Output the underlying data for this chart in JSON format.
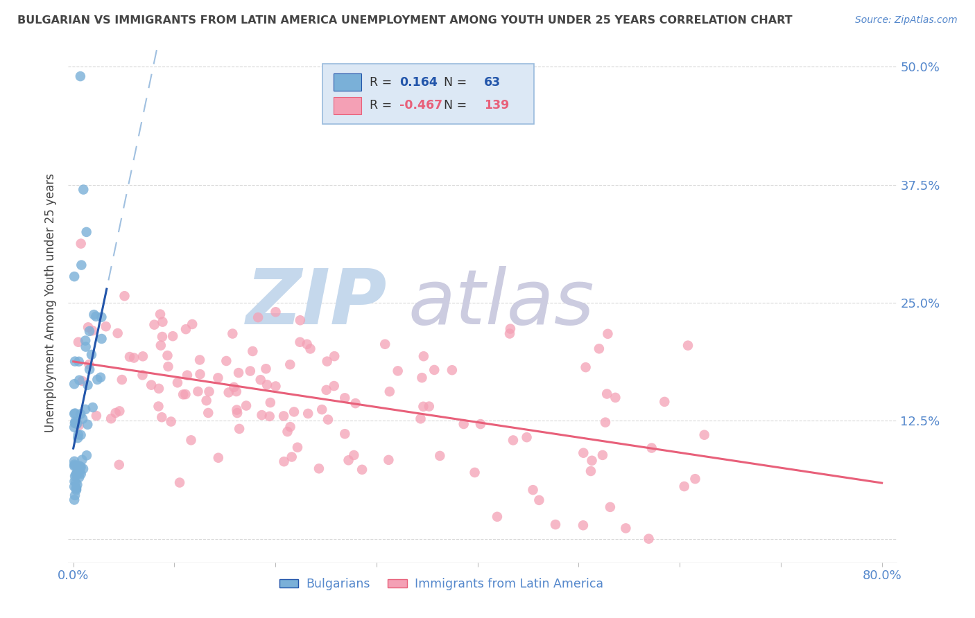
{
  "title": "BULGARIAN VS IMMIGRANTS FROM LATIN AMERICA UNEMPLOYMENT AMONG YOUTH UNDER 25 YEARS CORRELATION CHART",
  "source": "Source: ZipAtlas.com",
  "ylabel": "Unemployment Among Youth under 25 years",
  "xlim": [
    -0.005,
    0.815
  ],
  "ylim": [
    -0.025,
    0.525
  ],
  "ytick_vals": [
    0.0,
    0.125,
    0.25,
    0.375,
    0.5
  ],
  "ytick_labels_right": [
    "",
    "12.5%",
    "25.0%",
    "37.5%",
    "50.0%"
  ],
  "xtick_vals": [
    0.0,
    0.1,
    0.2,
    0.3,
    0.4,
    0.5,
    0.6,
    0.7,
    0.8
  ],
  "xtick_labels": [
    "0.0%",
    "",
    "",
    "",
    "",
    "",
    "",
    "",
    "80.0%"
  ],
  "bulgarian_R": 0.164,
  "bulgarian_N": 63,
  "latin_R": -0.467,
  "latin_N": 139,
  "bg_color": "#ffffff",
  "blue_scatter_color": "#7ab0d8",
  "pink_scatter_color": "#f4a0b5",
  "blue_line_color": "#2255aa",
  "pink_line_color": "#e8607a",
  "blue_dash_color": "#a0c0e0",
  "grid_color": "#d8d8d8",
  "title_color": "#444444",
  "right_axis_color": "#5588cc",
  "legend_box_facecolor": "#dce8f5",
  "legend_box_edgecolor": "#99bbdd",
  "watermark_color_ZIP": "#c5d8ec",
  "watermark_color_atlas": "#cccce0",
  "bottom_legend_color": "#5588cc",
  "seed_bg": 42,
  "seed_lat": 17
}
